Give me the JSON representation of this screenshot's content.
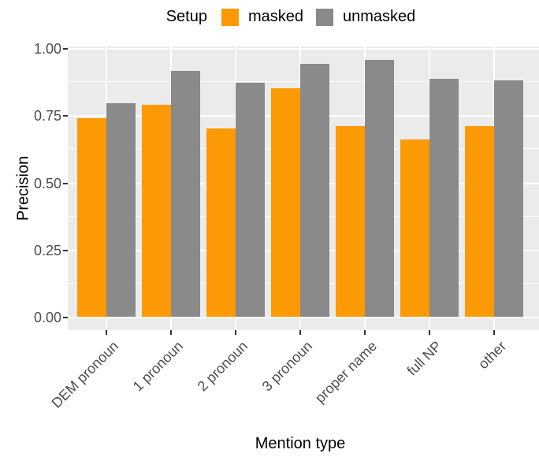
{
  "chart_data": {
    "type": "bar",
    "title": "",
    "legend_title": "Setup",
    "legend_position": "top",
    "categories": [
      "DEM pronoun",
      "1 pronoun",
      "2 pronoun",
      "3 pronoun",
      "proper name",
      "full NP",
      "other"
    ],
    "series": [
      {
        "name": "masked",
        "color": "#FB9A05",
        "values": [
          0.74,
          0.79,
          0.7,
          0.85,
          0.71,
          0.66,
          0.71
        ]
      },
      {
        "name": "unmasked",
        "color": "#8A8A8A",
        "values": [
          0.795,
          0.915,
          0.87,
          0.94,
          0.955,
          0.885,
          0.88
        ]
      }
    ],
    "xlabel": "Mention type",
    "ylabel": "Precision",
    "ylim": [
      0,
      1
    ],
    "yticks": [
      0,
      0.25,
      0.5,
      0.75,
      1.0
    ],
    "ytick_labels": [
      "0.00",
      "0.25",
      "0.50",
      "0.75",
      "1.00"
    ],
    "yticks_minor": [
      0.125,
      0.375,
      0.625,
      0.875
    ],
    "grid": true,
    "panel_bg": "#EBEBEB",
    "grid_color": "#FFFFFF",
    "axis_text_color": "#4D4D4D",
    "tick_color": "#333333"
  }
}
